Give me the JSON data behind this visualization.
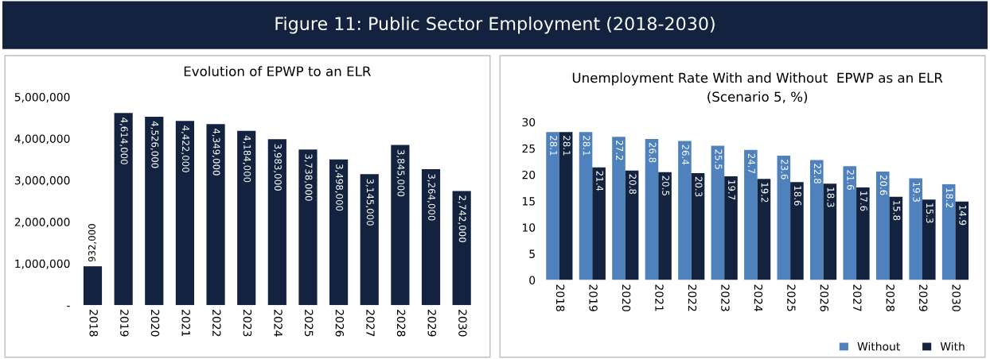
{
  "chart_data": [
    {
      "type": "bar",
      "annotations": [
        "Figure 11: Public Sector Employment (2018-2030)"
      ],
      "title": "Evolution of EPWP to an ELR",
      "categories": [
        "2018",
        "2019",
        "2020",
        "2021",
        "2022",
        "2023",
        "2024",
        "2025",
        "2026",
        "2027",
        "2028",
        "2029",
        "2030"
      ],
      "values": [
        932000,
        4614000,
        4526000,
        4422000,
        4349000,
        4184000,
        3983000,
        3738000,
        3498000,
        3145000,
        3845000,
        3264000,
        2742000
      ],
      "value_labels": [
        "932,000",
        "4,614,000",
        "4,526,000",
        "4,422,000",
        "4,349,000",
        "4,184,000",
        "3,983,000",
        "3,738,000",
        "3,498,000",
        "3,145,000",
        "3,845,000",
        "3,264,000",
        "2,742,000"
      ],
      "color": "#13233f",
      "ylim": [
        0,
        5000000
      ],
      "yticks": [
        {
          "value": 0,
          "label": "-"
        },
        {
          "value": 1000000,
          "label": "1,000,000"
        },
        {
          "value": 2000000,
          "label": "2,000,000"
        },
        {
          "value": 3000000,
          "label": "3,000,000"
        },
        {
          "value": 4000000,
          "label": "4,000,000"
        },
        {
          "value": 5000000,
          "label": "5,000,000"
        }
      ],
      "grid": false,
      "legend": false
    },
    {
      "type": "bar",
      "title": "Unemployment Rate With and Without  EPWP as an ELR",
      "subtitle": "(Scenario 5, %)",
      "categories": [
        "2018",
        "2019",
        "2020",
        "2021",
        "2022",
        "2023",
        "2024",
        "2025",
        "2026",
        "2027",
        "2028",
        "2029",
        "2030"
      ],
      "series": [
        {
          "name": "Without",
          "color": "#4f81bd",
          "values": [
            28.1,
            28.1,
            27.2,
            26.8,
            26.4,
            25.5,
            24.7,
            23.6,
            22.8,
            21.6,
            20.6,
            19.3,
            18.2
          ]
        },
        {
          "name": "With",
          "color": "#13233f",
          "values": [
            28.1,
            21.4,
            20.8,
            20.5,
            20.3,
            19.7,
            19.2,
            18.6,
            18.3,
            17.6,
            15.8,
            15.3,
            14.9
          ]
        }
      ],
      "ylim": [
        0,
        30
      ],
      "yticks": [
        0,
        5,
        10,
        15,
        20,
        25,
        30
      ],
      "data_labels": true,
      "grid": false,
      "legend": "bottom right"
    }
  ]
}
